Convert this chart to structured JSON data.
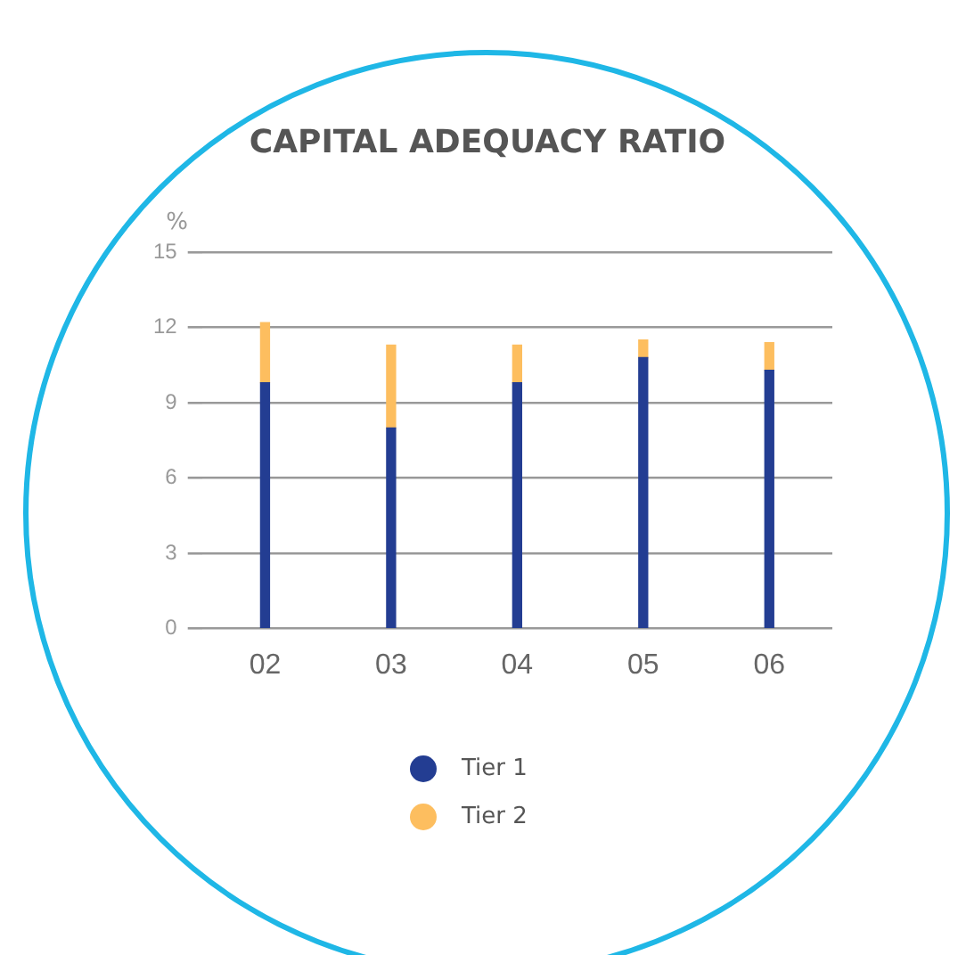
{
  "chart_data": {
    "type": "bar",
    "title": "CAPITAL ADEQUACY RATIO",
    "ylabel": "%",
    "categories": [
      "02",
      "03",
      "04",
      "05",
      "06"
    ],
    "series": [
      {
        "name": "Tier 1",
        "color": "#233d92",
        "values": [
          9.8,
          8.0,
          9.8,
          10.8,
          10.3
        ]
      },
      {
        "name": "Tier 2",
        "color": "#fdbe5f",
        "values": [
          2.4,
          3.3,
          1.5,
          0.7,
          1.1
        ]
      }
    ],
    "stacked": true,
    "ylim": [
      0,
      15
    ],
    "yticks": [
      0,
      3,
      6,
      9,
      12,
      15
    ],
    "grid": "y",
    "legend": "bottom"
  }
}
